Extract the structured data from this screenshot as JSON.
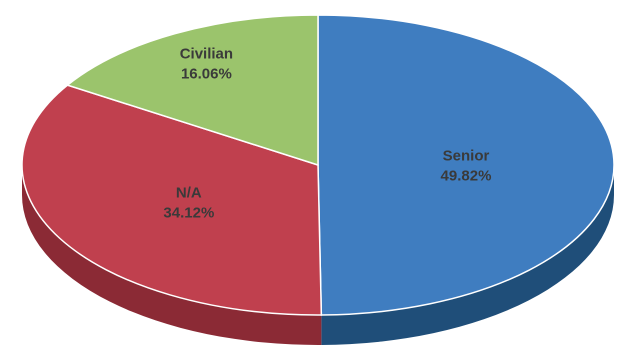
{
  "chart_data": {
    "type": "pie",
    "style": "3d",
    "slices": [
      {
        "label": "Senior",
        "value_label": "49.82%",
        "value": 49.82,
        "color": "#3f7dc0",
        "side_color": "#1f4e79"
      },
      {
        "label": "N/A",
        "value_label": "34.12%",
        "value": 34.12,
        "color": "#c0404e",
        "side_color": "#8b2a35"
      },
      {
        "label": "Civilian",
        "value_label": "16.06%",
        "value": 16.06,
        "color": "#9bc46c",
        "side_color": "#6e9447"
      }
    ],
    "legend": "none",
    "title": ""
  }
}
